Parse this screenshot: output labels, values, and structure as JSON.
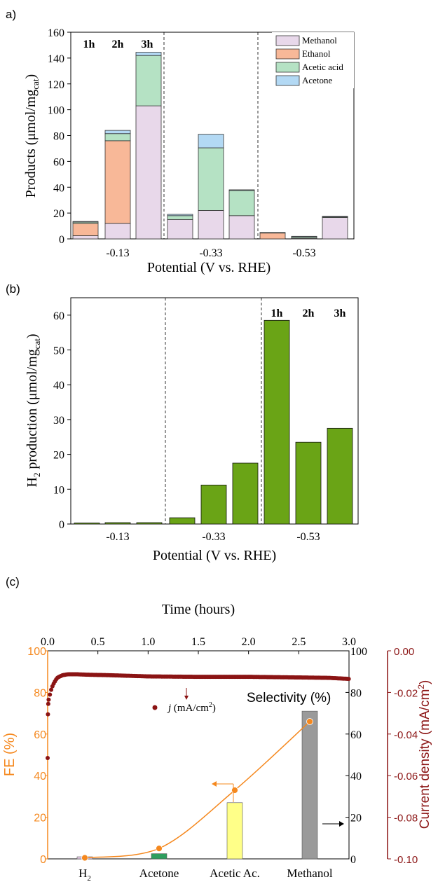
{
  "chart_data": [
    {
      "panel": "a)",
      "type": "bar",
      "stacked": true,
      "xlabel": "Potential (V vs. RHE)",
      "ylabel": "Products (μmol/mg",
      "ylabel_sub": "cat",
      "ylabel_end": ")",
      "ylim": [
        0,
        160
      ],
      "yticks": [
        "0",
        "20",
        "40",
        "60",
        "80",
        "100",
        "120",
        "140",
        "160"
      ],
      "groups": [
        "-0.13",
        "-0.33",
        "-0.53"
      ],
      "time_labels": [
        "1h",
        "2h",
        "3h"
      ],
      "legend_position": "top-right",
      "series": [
        {
          "name": "Methanol",
          "color": "#e8d8ea",
          "values": [
            2.5,
            12,
            103,
            15,
            22,
            18,
            0,
            0.5,
            16.5
          ]
        },
        {
          "name": "Ethanol",
          "color": "#f8b898",
          "values": [
            9.5,
            64,
            0,
            0,
            0,
            0,
            4.5,
            0,
            0
          ]
        },
        {
          "name": "Acetic acid",
          "color": "#b5e2c4",
          "values": [
            1,
            5.5,
            39,
            3,
            48.5,
            19.5,
            0.5,
            1,
            0.5
          ]
        },
        {
          "name": "Acetone",
          "color": "#b3d9f4",
          "values": [
            0.5,
            2.5,
            2.5,
            1,
            10.5,
            0.5,
            0,
            0.5,
            0.5
          ]
        }
      ]
    },
    {
      "panel": "(b)",
      "type": "bar",
      "xlabel": "Potential (V vs. RHE)",
      "ylabel_prefix": "H",
      "ylabel_sub1": "2",
      "ylabel_mid": " production (μmol/mg",
      "ylabel_sub2": "cat",
      "ylabel_end": ")",
      "ylim": [
        0,
        65
      ],
      "yticks": [
        "0",
        "10",
        "20",
        "30",
        "40",
        "50",
        "60"
      ],
      "groups": [
        "-0.13",
        "-0.33",
        "-0.53"
      ],
      "time_labels": [
        "1h",
        "2h",
        "3h"
      ],
      "color": "#6aa416",
      "values": [
        0.3,
        0.4,
        0.4,
        1.8,
        11.2,
        17.5,
        58.5,
        23.5,
        27.5
      ]
    },
    {
      "panel": "(c)",
      "type": "bar+line+scatter",
      "top_xlabel": "Time (hours)",
      "top_xticks": [
        "0.0",
        "0.5",
        "1.0",
        "1.5",
        "2.0",
        "2.5",
        "3.0"
      ],
      "time_range": [
        0,
        3
      ],
      "left_ylabel": "FE (%)",
      "left_yticks": [
        "0",
        "20",
        "40",
        "60",
        "80",
        "100"
      ],
      "left_color": "#f5881e",
      "middle_yticks": [
        "0",
        "20",
        "40",
        "60",
        "80",
        "100"
      ],
      "right_ylabel": "Current density (mA/cm",
      "right_ylabel_sup": "2",
      "right_ylabel_end": ")",
      "right_yticks": [
        "0.00",
        "-0.02",
        "-0.04",
        "-0.06",
        "-0.08",
        "-0.10"
      ],
      "right_ylim": [
        -0.1,
        0
      ],
      "right_color": "#8b1414",
      "categories": [
        "H",
        "Acetone",
        "Acetic Ac.",
        "Methanol"
      ],
      "category_sub": "2",
      "selectivity_label": "Selectivity (%)",
      "selectivity": [
        {
          "category": "H2",
          "value": 1,
          "color": "#e8cce8"
        },
        {
          "category": "Acetone",
          "value": 2.5,
          "color": "#2e9e5e"
        },
        {
          "category": "Acetic Ac.",
          "value": 27,
          "color": "#ffff88"
        },
        {
          "category": "Methanol",
          "value": 71,
          "color": "#9a9a9a"
        }
      ],
      "fe": [
        0.5,
        5,
        33,
        66
      ],
      "j_legend_prefix": "j",
      "j_legend_main": " (mA/cm",
      "j_legend_sup": "2",
      "j_legend_end": ")",
      "current_density": [
        {
          "t": 0.0,
          "j": -0.0515
        },
        {
          "t": 0.003,
          "j": -0.0305
        },
        {
          "t": 0.006,
          "j": -0.0255
        },
        {
          "t": 0.01,
          "j": -0.0235
        },
        {
          "t": 0.02,
          "j": -0.0215
        },
        {
          "t": 0.04,
          "j": -0.0178
        },
        {
          "t": 0.06,
          "j": -0.0158
        },
        {
          "t": 0.08,
          "j": -0.014
        },
        {
          "t": 0.1,
          "j": -0.0128
        },
        {
          "t": 0.15,
          "j": -0.0117
        },
        {
          "t": 0.2,
          "j": -0.0113
        },
        {
          "t": 0.3,
          "j": -0.0113
        },
        {
          "t": 0.4,
          "j": -0.0115
        },
        {
          "t": 0.6,
          "j": -0.0117
        },
        {
          "t": 0.8,
          "j": -0.012
        },
        {
          "t": 1.0,
          "j": -0.0123
        },
        {
          "t": 1.5,
          "j": -0.0125
        },
        {
          "t": 2.0,
          "j": -0.0125
        },
        {
          "t": 2.5,
          "j": -0.0128
        },
        {
          "t": 2.8,
          "j": -0.013
        },
        {
          "t": 3.0,
          "j": -0.0135
        }
      ]
    }
  ]
}
